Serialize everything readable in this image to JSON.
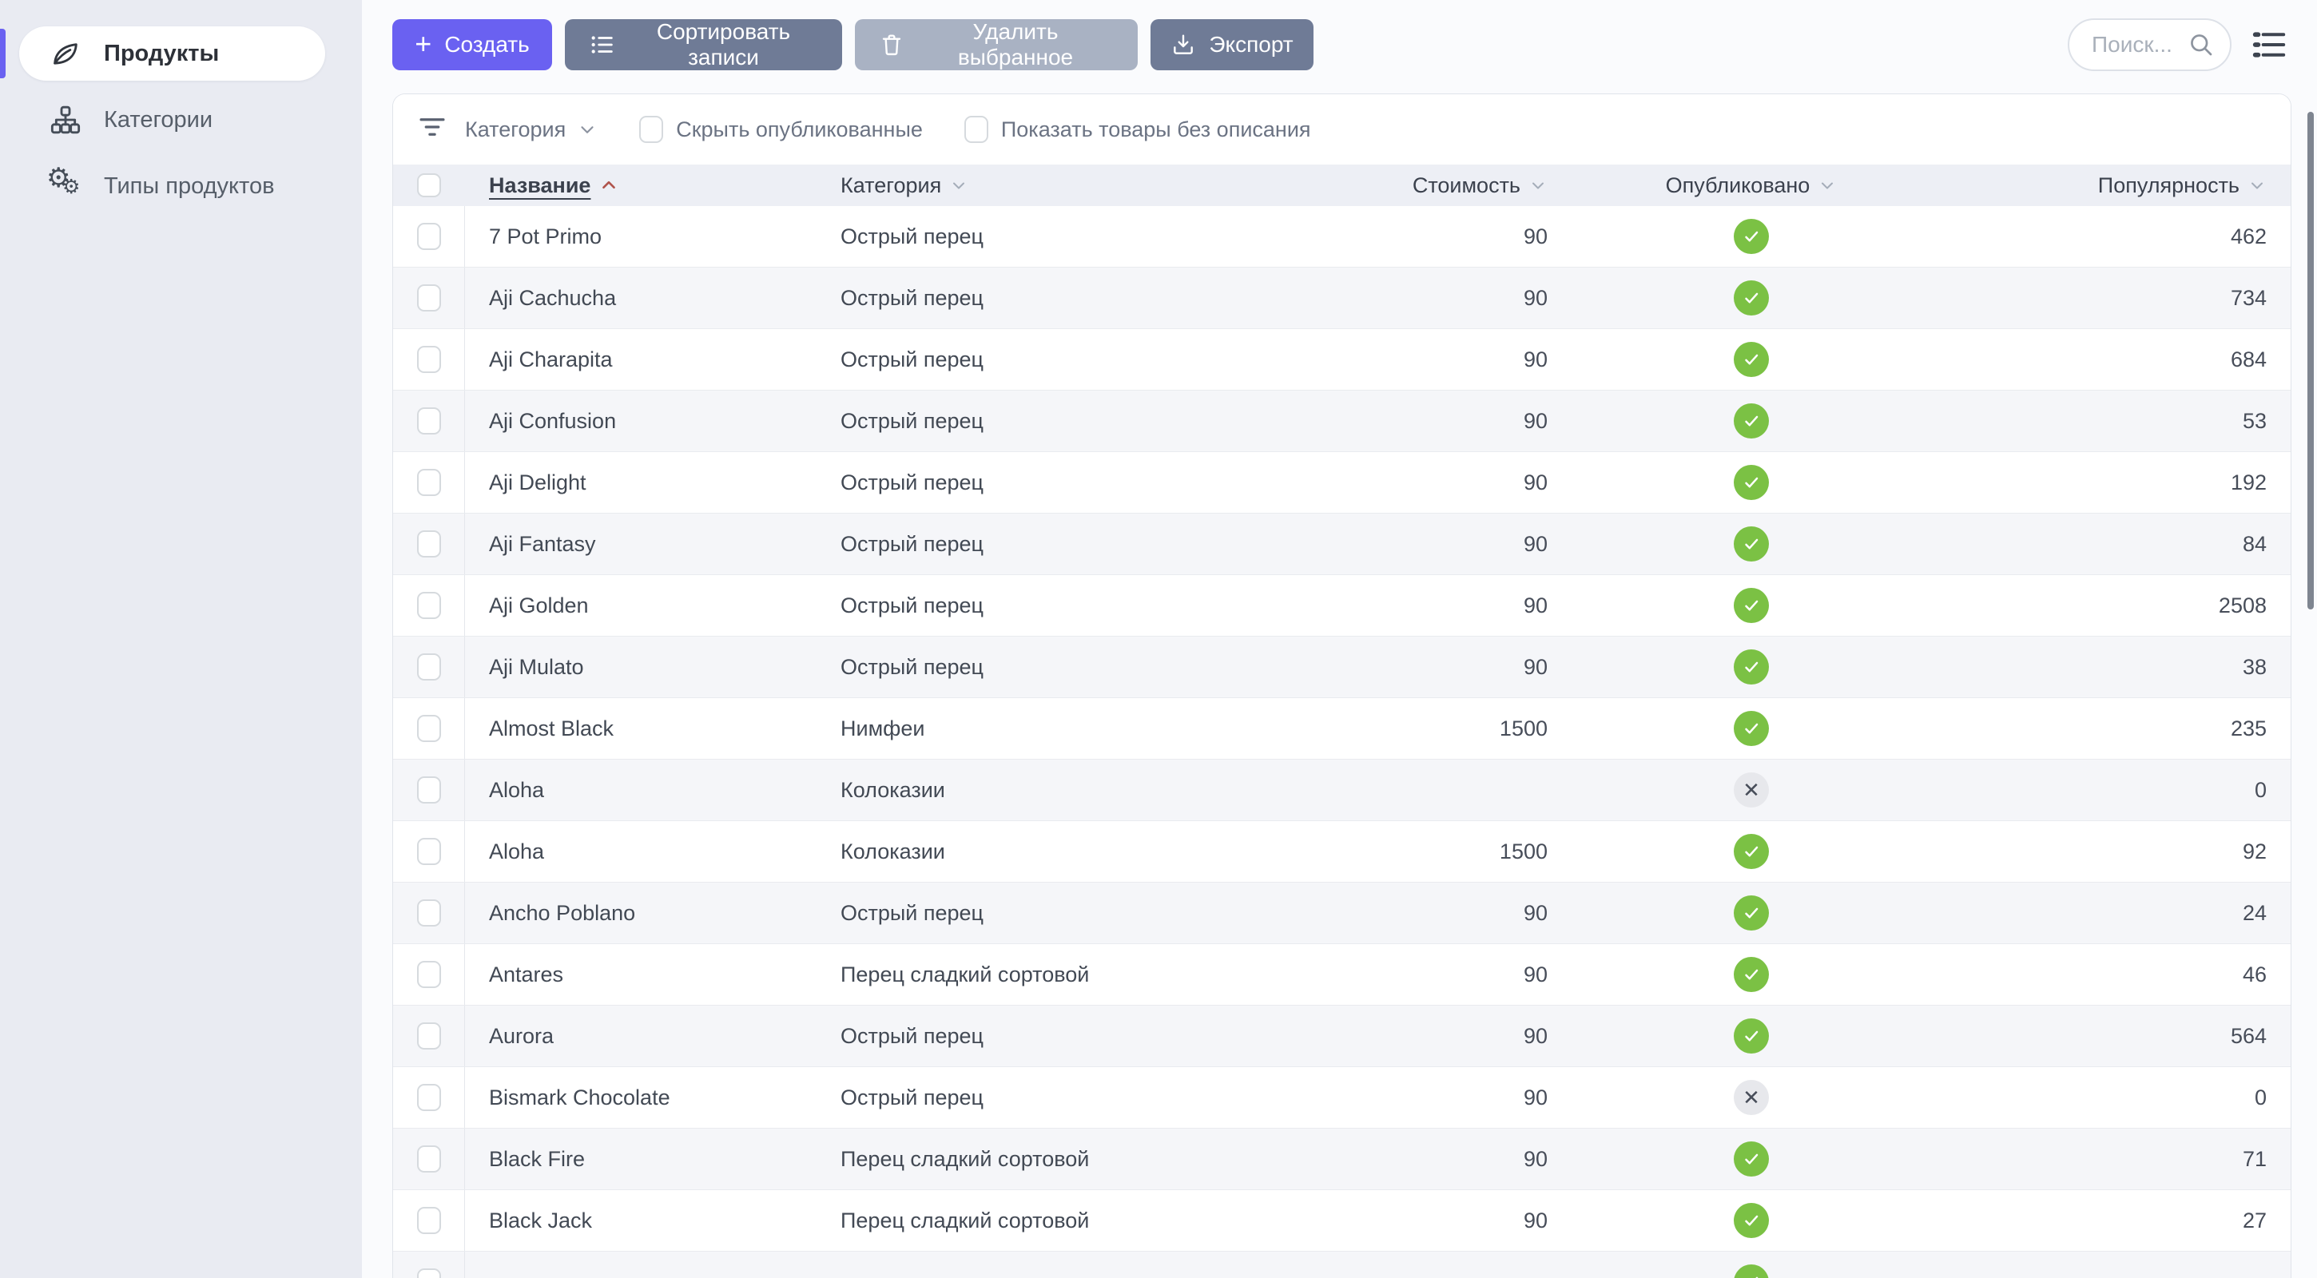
{
  "sidebar": {
    "items": [
      {
        "label": "Продукты",
        "icon": "leaf-icon",
        "active": true
      },
      {
        "label": "Категории",
        "icon": "sitemap-icon",
        "active": false
      },
      {
        "label": "Типы продуктов",
        "icon": "gears-icon",
        "active": false
      }
    ]
  },
  "toolbar": {
    "create_label": "Создать",
    "sort_label": "Сортировать записи",
    "delete_label": "Удалить выбранное",
    "export_label": "Экспорт"
  },
  "search": {
    "placeholder": "Поиск...",
    "value": ""
  },
  "filters": {
    "category_label": "Категория",
    "hide_published_label": "Скрыть опубликованные",
    "hide_published_checked": false,
    "show_no_description_label": "Показать товары без описания",
    "show_no_description_checked": false
  },
  "table": {
    "columns": {
      "name": "Название",
      "category": "Категория",
      "price": "Стоимость",
      "published": "Опубликовано",
      "popularity": "Популярность"
    },
    "sort": {
      "column": "Название",
      "direction": "asc"
    },
    "rows": [
      {
        "name": "7 Pot Primo",
        "category": "Острый перец",
        "price": "90",
        "published": true,
        "popularity": "462"
      },
      {
        "name": "Aji Cachucha",
        "category": "Острый перец",
        "price": "90",
        "published": true,
        "popularity": "734"
      },
      {
        "name": "Aji Charapita",
        "category": "Острый перец",
        "price": "90",
        "published": true,
        "popularity": "684"
      },
      {
        "name": "Aji Confusion",
        "category": "Острый перец",
        "price": "90",
        "published": true,
        "popularity": "53"
      },
      {
        "name": "Aji Delight",
        "category": "Острый перец",
        "price": "90",
        "published": true,
        "popularity": "192"
      },
      {
        "name": "Aji Fantasy",
        "category": "Острый перец",
        "price": "90",
        "published": true,
        "popularity": "84"
      },
      {
        "name": "Aji Golden",
        "category": "Острый перец",
        "price": "90",
        "published": true,
        "popularity": "2508"
      },
      {
        "name": "Aji Mulato",
        "category": "Острый перец",
        "price": "90",
        "published": true,
        "popularity": "38"
      },
      {
        "name": "Almost Black",
        "category": "Нимфеи",
        "price": "1500",
        "published": true,
        "popularity": "235"
      },
      {
        "name": "Aloha",
        "category": "Колоказии",
        "price": "",
        "published": false,
        "popularity": "0"
      },
      {
        "name": "Aloha",
        "category": "Колоказии",
        "price": "1500",
        "published": true,
        "popularity": "92"
      },
      {
        "name": "Ancho Poblano",
        "category": "Острый перец",
        "price": "90",
        "published": true,
        "popularity": "24"
      },
      {
        "name": "Antares",
        "category": "Перец сладкий сортовой",
        "price": "90",
        "published": true,
        "popularity": "46"
      },
      {
        "name": "Aurora",
        "category": "Острый перец",
        "price": "90",
        "published": true,
        "popularity": "564"
      },
      {
        "name": "Bismark Chocolate",
        "category": "Острый перец",
        "price": "90",
        "published": false,
        "popularity": "0"
      },
      {
        "name": "Black Fire",
        "category": "Перец сладкий сортовой",
        "price": "90",
        "published": true,
        "popularity": "71"
      },
      {
        "name": "Black Jack",
        "category": "Перец сладкий сортовой",
        "price": "90",
        "published": true,
        "popularity": "27"
      },
      {
        "name": "",
        "category": "",
        "price": "",
        "published": true,
        "popularity": ""
      }
    ]
  },
  "colors": {
    "accent": "#6a61f1",
    "button_slate": "#6f7b96",
    "button_disabled": "#a9b2c3",
    "published_green": "#7bc144",
    "unpublished_gray": "#e7e8ec",
    "sidebar_bg": "#e9ebf2",
    "header_bg": "#edeff5",
    "row_alt_bg": "#f5f6f9",
    "sort_caret": "#b0544c"
  }
}
